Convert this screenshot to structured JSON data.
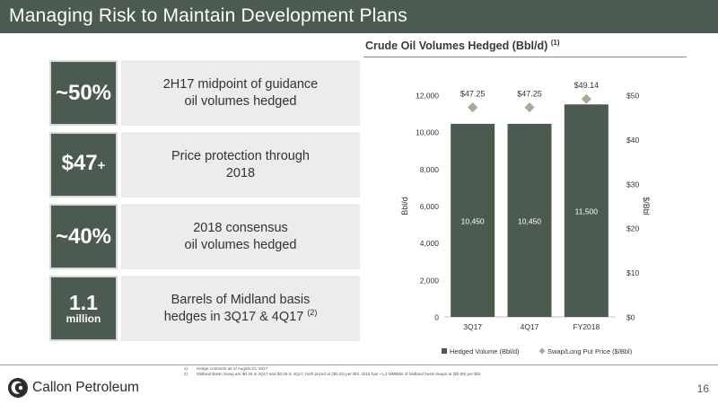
{
  "header": {
    "title": "Managing Risk to Maintain Development Plans"
  },
  "stats": [
    {
      "value": "~50%",
      "description": [
        "2H17 midpoint of guidance",
        "oil volumes hedged"
      ]
    },
    {
      "value": "$47",
      "value_suffix": "+",
      "description": [
        "Price protection through",
        "2018"
      ]
    },
    {
      "value": "~40%",
      "description": [
        "2018 consensus",
        "oil volumes hedged"
      ]
    },
    {
      "value": "1.1",
      "value_sub": "million",
      "description": [
        "Barrels of Midland basis",
        "hedges in 3Q17 & 4Q17"
      ],
      "footnote_ref": "(2)"
    }
  ],
  "chart_title": {
    "text": "Crude Oil Volumes Hedged (Bbl/d)",
    "footnote_ref": "(1)"
  },
  "chart_data": {
    "type": "bar",
    "title": "Crude Oil Volumes Hedged (Bbl/d)",
    "categories": [
      "3Q17",
      "4Q17",
      "FY2018"
    ],
    "series": [
      {
        "name": "Hedged Volume (Bbl/d)",
        "type": "bar",
        "axis": "left",
        "values": [
          10450,
          10450,
          11500
        ],
        "labels": [
          "10,450",
          "10,450",
          "11,500"
        ],
        "color": "#4b5b4f"
      },
      {
        "name": "Swap/Long Put Price ($/Bbl)",
        "type": "scatter",
        "marker": "diamond",
        "axis": "right",
        "values": [
          47.25,
          47.25,
          49.14
        ],
        "labels": [
          "$47.25",
          "$47.25",
          "$49.14"
        ],
        "color": "#a4ab95"
      }
    ],
    "ylabel_left": "Bbl/d",
    "ylabel_right": "$/Bbl",
    "ylim_left": [
      0,
      12000
    ],
    "ylim_right": [
      0,
      50
    ],
    "yticks_left": [
      "0",
      "2,000",
      "4,000",
      "6,000",
      "8,000",
      "10,000",
      "12,000"
    ],
    "yticks_right": [
      "$0",
      "$10",
      "$20",
      "$30",
      "$40",
      "$50"
    ],
    "grid": false,
    "legend_position": "bottom"
  },
  "footnotes": [
    {
      "num": "1)",
      "text": "Hedge contracts as of August 21, 2017."
    },
    {
      "num": "2)",
      "text": "Midland Basin Swap are $0.26 in 3Q17 and $0.26 in 4Q17, both priced at ($0.52) per Bbl. 2018 has ~1.2 MMBbls of Midland basis swaps at ($0.99) per Bbl."
    }
  ],
  "footer": {
    "company": "Callon Petroleum",
    "page_number": "16"
  },
  "colors": {
    "brand": "#4b5b4f",
    "panel": "#ececec",
    "marker": "#a4ab95"
  }
}
